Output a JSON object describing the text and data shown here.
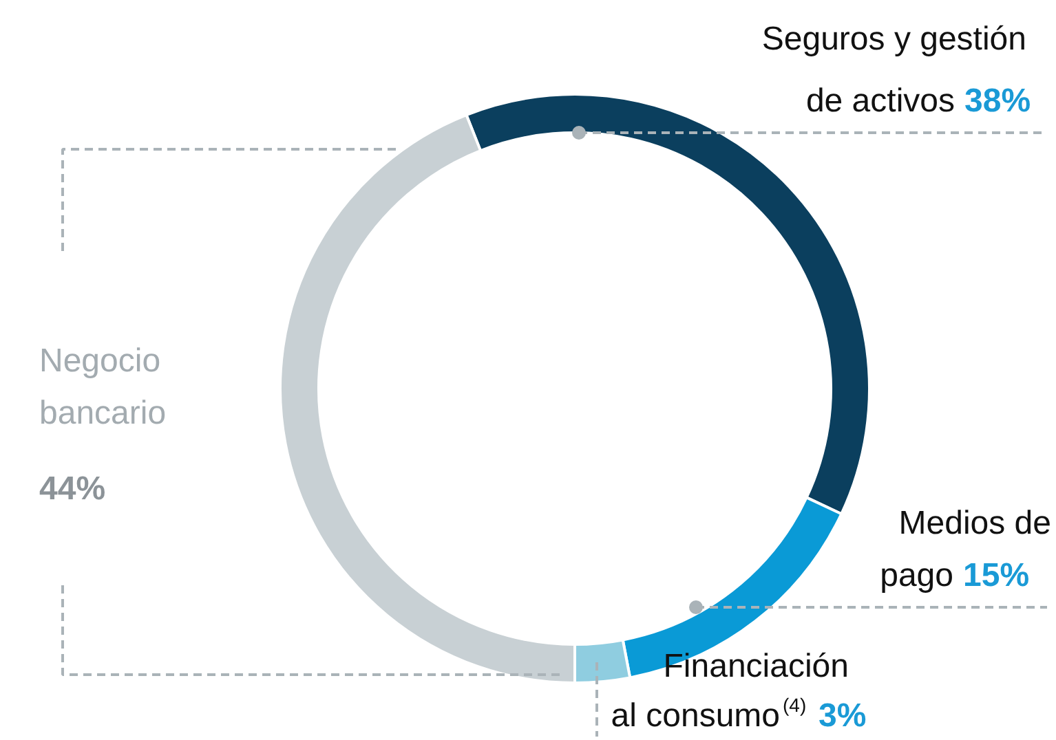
{
  "chart_data": {
    "type": "donut",
    "categories": [
      "Seguros y gestión\nde activos",
      "Medios de\npago",
      "Financiación\nal consumo$^{(4)}$",
      "Negocio\nbancario"
    ],
    "values": [
      38,
      15,
      3,
      44
    ],
    "colors": [
      "#0b3f5e",
      "#0a9ad6",
      "#8fcde0",
      "#c8d0d4"
    ],
    "value_labels": [
      "38%",
      "15%",
      "3%",
      "44%"
    ]
  }
}
